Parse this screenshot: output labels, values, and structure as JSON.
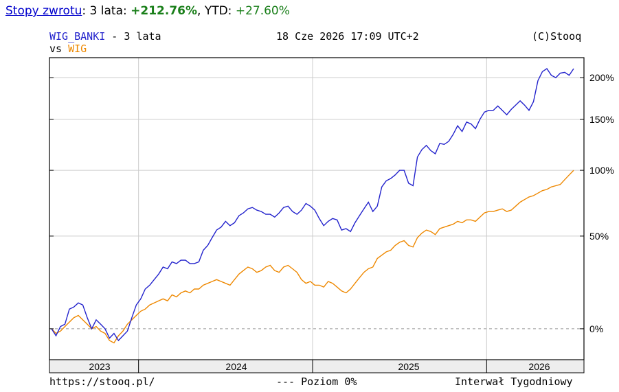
{
  "header": {
    "link_label": "Stopy zwrotu",
    "period_text": ": 3 lata: ",
    "period_return": "+212.76%",
    "ytd_text": ", YTD: ",
    "ytd_return": "+27.60%"
  },
  "chart_header": {
    "series_name": "WIG_BANKI",
    "period": " - 3 lata",
    "datetime": "18 Cze 2026 17:09 UTC+2",
    "copyright": "(C)Stooq",
    "vs_label": "vs ",
    "compare_name": "WIG"
  },
  "footer": {
    "url": "https://stooq.pl/",
    "level_label": "--- Poziom 0%",
    "interval": "Interwał Tygodniowy"
  },
  "colors": {
    "primary": "#2222cc",
    "compare": "#ee8800",
    "grid": "#cccccc",
    "positive": "#1a7f1a"
  },
  "chart_data": {
    "type": "line",
    "x_unit": "week",
    "x_tick_labels": [
      "2023",
      "2024",
      "2025",
      "2026"
    ],
    "y_tick_labels": [
      "0%",
      "50%",
      "100%",
      "150%",
      "200%"
    ],
    "y_scale": "log",
    "ylim": [
      -10,
      212
    ],
    "grid": true,
    "reference_line": 0,
    "series": [
      {
        "name": "WIG_BANKI",
        "values": [
          0.0,
          -3.0,
          1.0,
          2.0,
          9.0,
          10.0,
          12.0,
          11.0,
          5.0,
          0.0,
          4.0,
          2.0,
          0.0,
          -4.0,
          -2.0,
          -5.0,
          -3.0,
          -1.0,
          5.0,
          11.0,
          14.0,
          19.0,
          21.0,
          24.0,
          27.0,
          31.0,
          30.0,
          34.0,
          33.0,
          35.0,
          35.0,
          33.0,
          33.0,
          34.0,
          41.0,
          44.0,
          49.0,
          54.0,
          56.0,
          60.0,
          57.0,
          59.0,
          64.0,
          66.0,
          69.0,
          70.0,
          68.0,
          67.0,
          65.0,
          65.0,
          63.0,
          66.0,
          70.0,
          71.0,
          67.0,
          65.0,
          68.0,
          73.0,
          71.0,
          68.0,
          62.0,
          57.0,
          60.0,
          62.0,
          61.0,
          54.0,
          55.0,
          53.0,
          59.0,
          64.0,
          69.0,
          74.0,
          67.0,
          71.0,
          86.0,
          91.0,
          93.0,
          96.0,
          100.0,
          100.0,
          89.0,
          87.0,
          112.0,
          119.0,
          123.0,
          118.0,
          115.0,
          125.0,
          124.0,
          127.0,
          134.0,
          143.0,
          137.0,
          147.0,
          145.0,
          140.0,
          150.0,
          158.0,
          160.0,
          160.0,
          165.0,
          160.0,
          155.0,
          161.0,
          166.0,
          171.0,
          166.0,
          160.0,
          170.0,
          196.0,
          208.0,
          212.0,
          203.0,
          200.0,
          206.0,
          207.0,
          203.0,
          212.0
        ],
        "values_note": ""
      },
      {
        "name": "WIG",
        "values": [
          0.0,
          -2.0,
          -1.0,
          1.0,
          3.0,
          5.0,
          6.0,
          4.0,
          2.0,
          0.0,
          1.0,
          -1.0,
          -2.0,
          -5.0,
          -6.0,
          -3.0,
          -1.0,
          2.0,
          4.0,
          6.0,
          8.0,
          9.0,
          11.0,
          12.0,
          13.0,
          14.0,
          13.0,
          16.0,
          15.0,
          17.0,
          18.0,
          17.0,
          19.0,
          19.0,
          21.0,
          22.0,
          23.0,
          24.0,
          23.0,
          22.0,
          21.0,
          24.0,
          27.0,
          29.0,
          31.0,
          30.0,
          28.0,
          29.0,
          31.0,
          32.0,
          29.0,
          28.0,
          31.0,
          32.0,
          30.0,
          28.0,
          24.0,
          22.0,
          23.0,
          21.0,
          21.0,
          20.0,
          23.0,
          22.0,
          20.0,
          18.0,
          17.0,
          19.0,
          22.0,
          25.0,
          28.0,
          30.0,
          31.0,
          36.0,
          38.0,
          40.0,
          41.0,
          44.0,
          46.0,
          47.0,
          44.0,
          43.0,
          49.0,
          52.0,
          54.0,
          53.0,
          51.0,
          55.0,
          56.0,
          57.0,
          58.0,
          60.0,
          59.0,
          61.0,
          61.0,
          60.0,
          63.0,
          66.0,
          67.0,
          67.0,
          68.0,
          69.0,
          67.0,
          68.0,
          71.0,
          74.0,
          76.0,
          78.0,
          79.0,
          81.0,
          83.0,
          84.0,
          86.0,
          87.0,
          88.0,
          92.0,
          96.0,
          100.0
        ],
        "values_note": ""
      }
    ]
  }
}
